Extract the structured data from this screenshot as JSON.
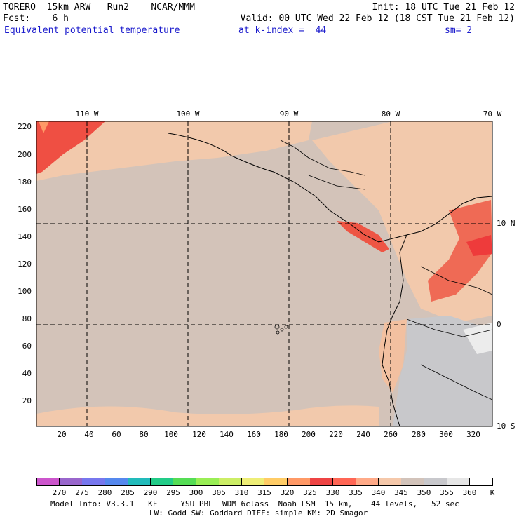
{
  "header": {
    "line1_left": "TORERO  15km ARW   Run2    NCAR/MMM",
    "line1_right": "Init: 18 UTC Tue 21 Feb 12",
    "line2_left": "Fcst:    6 h",
    "line2_right": "Valid: 00 UTC Wed 22 Feb 12 (18 CST Tue 21 Feb 12)",
    "field": "Equivalent potential temperature",
    "level": "at k-index =  44",
    "smooth": "sm= 2"
  },
  "axes": {
    "lon_labels": [
      "110 W",
      "100 W",
      "90 W",
      "80 W",
      "70 W"
    ],
    "lat_labels": [
      "10 N",
      "0",
      "10 S"
    ],
    "x_ticks": [
      "20",
      "40",
      "60",
      "80",
      "100",
      "120",
      "140",
      "160",
      "180",
      "200",
      "220",
      "240",
      "260",
      "280",
      "300",
      "320"
    ],
    "y_ticks": [
      "220",
      "200",
      "180",
      "160",
      "140",
      "120",
      "100",
      "80",
      "60",
      "40",
      "20"
    ]
  },
  "colorbar": {
    "levels": [
      "270",
      "275",
      "280",
      "285",
      "290",
      "295",
      "300",
      "305",
      "310",
      "315",
      "320",
      "325",
      "330",
      "335",
      "340",
      "345",
      "350",
      "355",
      "360"
    ],
    "unit": "K",
    "colors": [
      "#cc55cc",
      "#9966cc",
      "#7777ee",
      "#5588ee",
      "#22bbbb",
      "#22cc88",
      "#55dd55",
      "#99ee55",
      "#ccee66",
      "#eeee77",
      "#ffcc66",
      "#ff9966",
      "#ee4444",
      "#ff6655",
      "#ffaa88",
      "#f5c8aa",
      "#d2c3ba",
      "#c8c8cc",
      "#e6e6e6",
      "#ffffff"
    ]
  },
  "footer": {
    "line1": "Model Info: V3.3.1   KF     YSU PBL  WDM 6class  Noah LSM  15 km,    44 levels,   52 sec",
    "line2": "LW: Godd SW: Goddard DIFF: simple KM: 2D Smagor"
  }
}
